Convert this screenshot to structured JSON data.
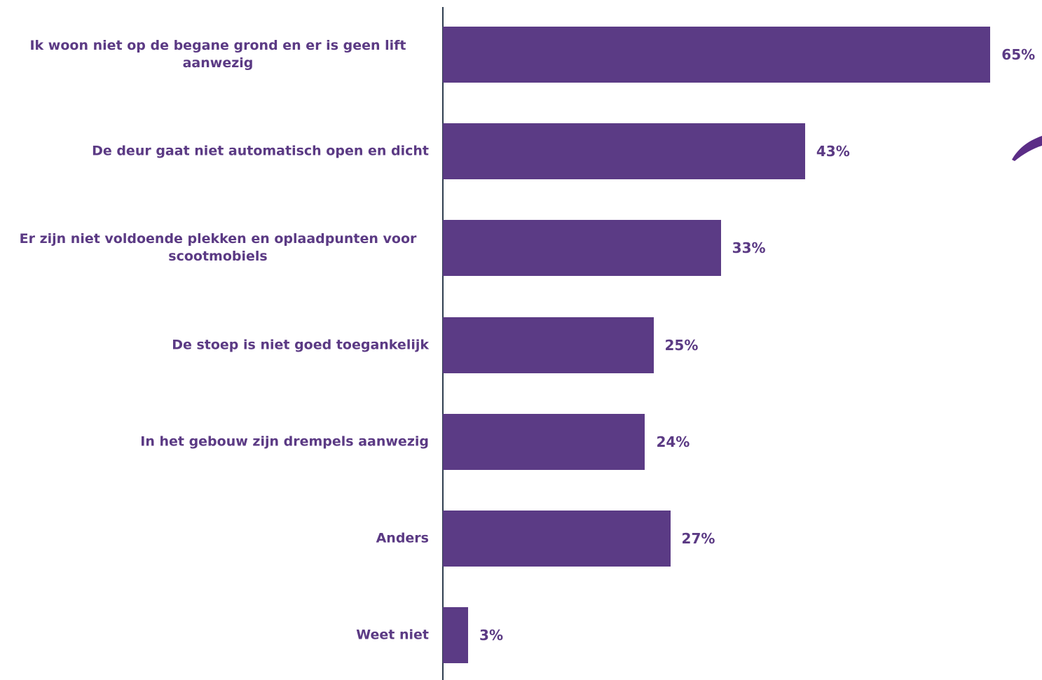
{
  "chart_data": {
    "type": "bar",
    "orientation": "horizontal",
    "categories": [
      "Ik woon niet op de begane grond en er is geen lift aanwezig",
      "De deur gaat niet automatisch open en dicht",
      "Er zijn niet voldoende plekken en oplaadpunten voor scootmobiels",
      "De stoep is niet goed toegankelijk",
      "In het gebouw zijn drempels aanwezig",
      "Anders",
      "Weet niet"
    ],
    "values": [
      65,
      43,
      33,
      25,
      24,
      27,
      3
    ],
    "value_labels": [
      "65%",
      "43%",
      "33%",
      "25%",
      "24%",
      "27%",
      "3%"
    ],
    "color": "#5b3b85"
  }
}
